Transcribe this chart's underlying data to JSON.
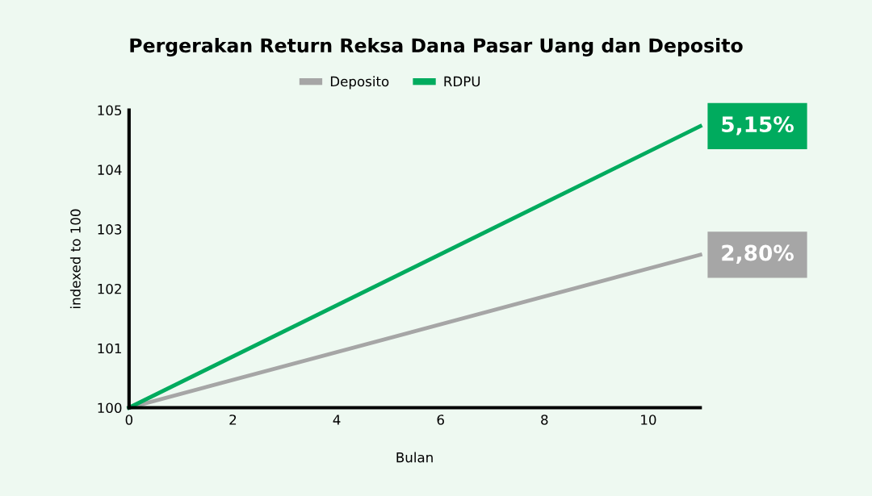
{
  "chart_data": {
    "type": "line",
    "title": "Pergerakan Return Reksa Dana Pasar Uang dan Deposito",
    "xlabel": "Bulan",
    "ylabel": "indexed to 100",
    "x": [
      0,
      11
    ],
    "series": [
      {
        "name": "Deposito",
        "color": "#a6a6a6",
        "values": [
          100,
          102.57
        ]
      },
      {
        "name": "RDPU",
        "color": "#00ab5e",
        "values": [
          100,
          104.73
        ]
      }
    ],
    "annotations": [
      {
        "text": "2,80%",
        "x": 11,
        "y": 102.57
      },
      {
        "text": "5,15%",
        "x": 11,
        "y": 104.73
      }
    ],
    "xlim": [
      0,
      11
    ],
    "ylim": [
      100,
      105
    ],
    "xticks": [
      0,
      2,
      4,
      6,
      8,
      10
    ],
    "yticks": [
      100,
      101,
      102,
      103,
      104,
      105
    ],
    "grid": false,
    "legend": "top",
    "marker": "none",
    "line_style": "solid"
  }
}
